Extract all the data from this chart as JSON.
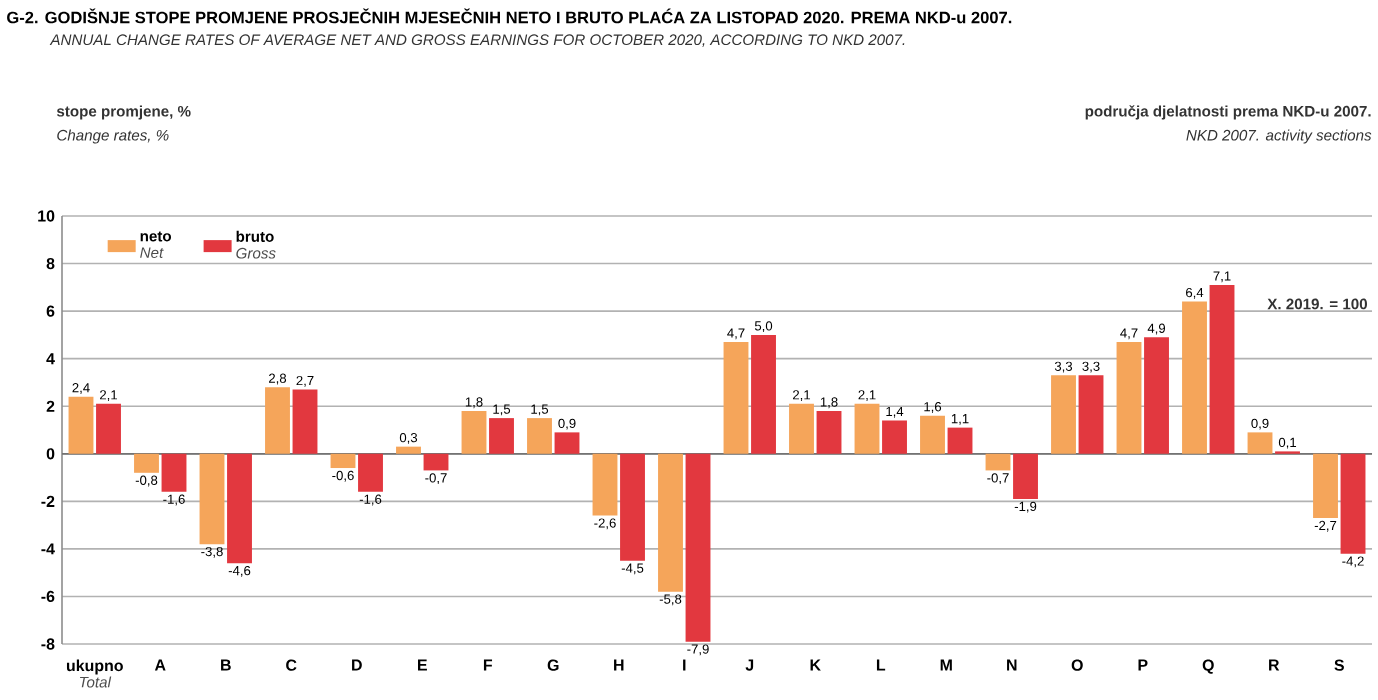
{
  "chart_data": {
    "type": "bar",
    "title": "G-2. GODIŠNJE STOPE PROMJENE PROSJEČNIH MJESEČNIH NETO I BRUTO PLAĆA ZA LISTOPAD 2020. PREMA NKD-u 2007.",
    "subtitle": "ANNUAL CHANGE RATES OF AVERAGE NET AND GROSS EARNINGS FOR OCTOBER 2020, ACCORDING TO NKD 2007.",
    "annotations": [
      "stope promjene, %",
      "Change rates, %",
      "područja djelatnosti prema NKD-u 2007.",
      "NKD 2007. activity sections",
      "X. 2019. = 100",
      "Total",
      "Net",
      "Gross"
    ],
    "categories": [
      "ukupno",
      "A",
      "B",
      "C",
      "D",
      "E",
      "F",
      "G",
      "H",
      "I",
      "J",
      "K",
      "L",
      "M",
      "N",
      "O",
      "P",
      "Q",
      "R",
      "S"
    ],
    "series": [
      {
        "name": "neto",
        "color": "#f5a55a",
        "values": [
          2.4,
          -0.8,
          -3.8,
          2.8,
          -0.6,
          0.3,
          1.8,
          1.5,
          -2.6,
          -5.8,
          4.7,
          2.1,
          2.1,
          1.6,
          -0.7,
          3.3,
          4.7,
          6.4,
          0.9,
          -2.7
        ],
        "value_labels": [
          "2,4",
          "-0,8",
          "-3,8",
          "2,8",
          "-0,6",
          "0,3",
          "1,8",
          "1,5",
          "-2,6",
          "-5,8",
          "4,7",
          "2,1",
          "2,1",
          "1,6",
          "-0,7",
          "3,3",
          "4,7",
          "6,4",
          "0,9",
          "-2,7"
        ]
      },
      {
        "name": "bruto",
        "color": "#e2383f",
        "values": [
          2.1,
          -1.6,
          -4.6,
          2.7,
          -1.6,
          -0.7,
          1.5,
          0.9,
          -4.5,
          -7.9,
          5.0,
          1.8,
          1.4,
          1.1,
          -1.9,
          3.3,
          4.9,
          7.1,
          0.1,
          -4.2
        ],
        "value_labels": [
          "2,1",
          "-1,6",
          "-4,6",
          "2,7",
          "-1,6",
          "-0,7",
          "1,5",
          "0,9",
          "-4,5",
          "-7,9",
          "5,0",
          "1,8",
          "1,4",
          "1,1",
          "-1,9",
          "3,3",
          "4,9",
          "7,1",
          "0,1",
          "-4,2"
        ]
      }
    ],
    "ylim": [
      -8,
      10
    ],
    "yticks": [
      -8,
      -6,
      -4,
      -2,
      0,
      2,
      4,
      6,
      8,
      10
    ],
    "grid": "y",
    "legend": "top left"
  }
}
